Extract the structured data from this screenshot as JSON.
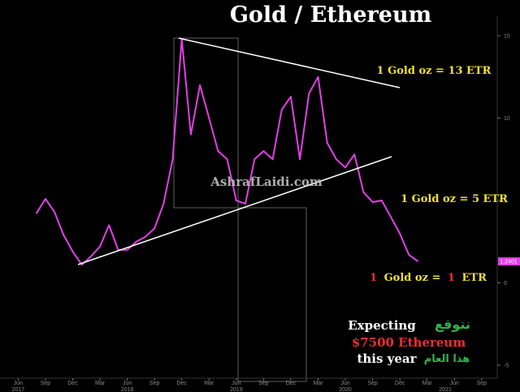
{
  "chart_data": {
    "type": "line",
    "title": "Gold / Ethereum",
    "x": [
      "2017-08",
      "2017-09",
      "2017-10",
      "2017-11",
      "2017-12",
      "2018-01",
      "2018-02",
      "2018-03",
      "2018-04",
      "2018-05",
      "2018-06",
      "2018-07",
      "2018-08",
      "2018-09",
      "2018-10",
      "2018-11",
      "2018-12",
      "2019-01",
      "2019-02",
      "2019-03",
      "2019-04",
      "2019-05",
      "2019-06",
      "2019-07",
      "2019-08",
      "2019-09",
      "2019-10",
      "2019-11",
      "2019-12",
      "2020-01",
      "2020-02",
      "2020-03",
      "2020-04",
      "2020-05",
      "2020-06",
      "2020-07",
      "2020-08",
      "2020-09",
      "2020-10",
      "2020-11",
      "2020-12",
      "2021-01",
      "2021-02"
    ],
    "series": [
      {
        "color": "#e23fe6",
        "values": [
          4.2,
          5.1,
          4.3,
          2.9,
          1.9,
          1.1,
          1.6,
          2.2,
          3.5,
          2.0,
          2.0,
          2.5,
          2.8,
          3.3,
          4.8,
          7.5,
          14.8,
          9.0,
          12.0,
          10.0,
          8.0,
          7.5,
          5.0,
          4.8,
          7.5,
          8.0,
          7.5,
          10.5,
          11.3,
          7.5,
          11.5,
          12.5,
          8.5,
          7.5,
          7.0,
          7.8,
          5.5,
          4.9,
          5.0,
          4.0,
          3.0,
          1.7,
          1.3
        ]
      }
    ],
    "last_value_label": "1.2401",
    "xlim": [
      "2017-04",
      "2021-10"
    ],
    "xticks": [
      {
        "value": "2017-06",
        "label": "Jun"
      },
      {
        "value": "2017-09",
        "label": "Sep"
      },
      {
        "value": "2017-12",
        "label": "Dec"
      },
      {
        "value": "2018-03",
        "label": "Mar"
      },
      {
        "value": "2018-06",
        "label": "Jun"
      },
      {
        "value": "2018-09",
        "label": "Sep"
      },
      {
        "value": "2018-12",
        "label": "Dec"
      },
      {
        "value": "2019-03",
        "label": "Mar"
      },
      {
        "value": "2019-06",
        "label": "Jun"
      },
      {
        "value": "2019-09",
        "label": "Sep"
      },
      {
        "value": "2019-12",
        "label": "Dec"
      },
      {
        "value": "2020-03",
        "label": "Mar"
      },
      {
        "value": "2020-06",
        "label": "Jun"
      },
      {
        "value": "2020-09",
        "label": "Sep"
      },
      {
        "value": "2020-12",
        "label": "Dec"
      },
      {
        "value": "2021-03",
        "label": "Mar"
      },
      {
        "value": "2021-06",
        "label": "Jun"
      },
      {
        "value": "2021-09",
        "label": "Sep"
      }
    ],
    "year_labels": [
      {
        "value": "2017-06",
        "label": "2017"
      },
      {
        "value": "2018-06",
        "label": "2018"
      },
      {
        "value": "2019-06",
        "label": "2019"
      },
      {
        "value": "2020-06",
        "label": "2020"
      },
      {
        "value": "2021-05",
        "label": "2021"
      }
    ],
    "ylim": [
      -6,
      16
    ],
    "yticks": [
      15,
      10,
      5,
      0,
      -5
    ],
    "grid": false,
    "annotations": {
      "top_ratio": "1 Gold oz = 13 ETR",
      "mid_ratio": "1 Gold oz = 5 ETR",
      "low_ratio": [
        "1",
        "Gold oz =",
        "1",
        "ETR"
      ],
      "watermark": "AshrafLaidi.com",
      "expecting": "Expecting",
      "expecting_ar": "نتوقع",
      "target": "$7500 Ethereum",
      "this_year": "this year",
      "this_year_ar": "هذا العام"
    }
  }
}
